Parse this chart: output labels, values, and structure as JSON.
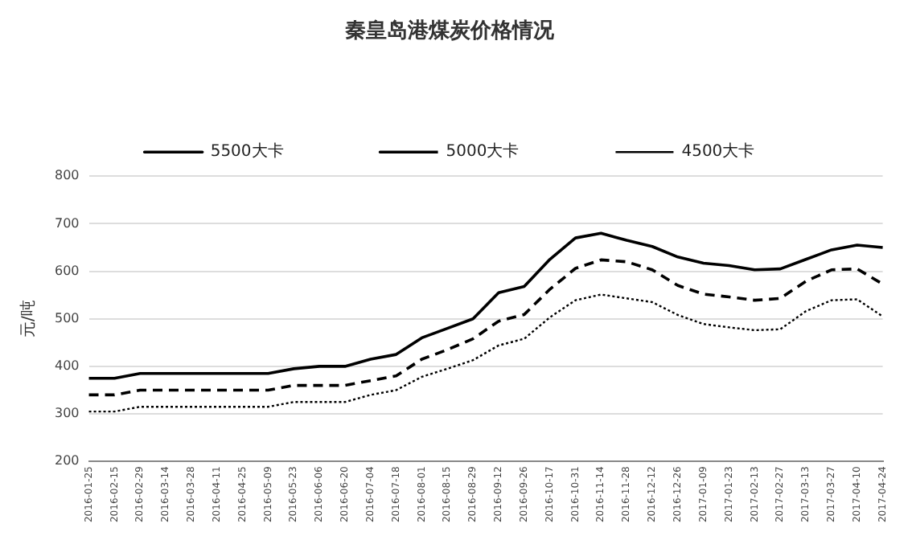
{
  "chart_data": {
    "type": "line",
    "title": "秦皇岛港煤炭价格情况",
    "ylabel": "元/吨",
    "categories": [
      "2016-01-25",
      "2016-02-15",
      "2016-02-29",
      "2016-03-14",
      "2016-03-28",
      "2016-04-11",
      "2016-04-25",
      "2016-05-09",
      "2016-05-23",
      "2016-06-06",
      "2016-06-20",
      "2016-07-04",
      "2016-07-18",
      "2016-08-01",
      "2016-08-15",
      "2016-08-29",
      "2016-09-12",
      "2016-09-26",
      "2016-10-17",
      "2016-10-31",
      "2016-11-14",
      "2016-11-28",
      "2016-12-12",
      "2016-12-26",
      "2017-01-09",
      "2017-01-23",
      "2017-02-13",
      "2017-02-27",
      "2017-03-13",
      "2017-03-27",
      "2017-04-10",
      "2017-04-24"
    ],
    "series": [
      {
        "name": "5500大卡",
        "color": "#000000",
        "line_style": "solid",
        "values": [
          375,
          375,
          385,
          385,
          385,
          385,
          385,
          385,
          395,
          400,
          400,
          415,
          425,
          460,
          480,
          500,
          555,
          568,
          625,
          670,
          680,
          665,
          652,
          630,
          617,
          612,
          603,
          605,
          625,
          645,
          655,
          650
        ]
      },
      {
        "name": "5000大卡",
        "color": "#000000",
        "line_style": "dashed",
        "values": [
          340,
          340,
          350,
          350,
          350,
          350,
          350,
          350,
          360,
          360,
          360,
          370,
          380,
          415,
          435,
          458,
          495,
          509,
          562,
          606,
          624,
          620,
          603,
          570,
          552,
          546,
          539,
          543,
          579,
          603,
          605,
          573
        ]
      },
      {
        "name": "4500大卡",
        "color": "#000000",
        "line_style": "dotted",
        "values": [
          305,
          305,
          315,
          315,
          315,
          315,
          315,
          315,
          325,
          325,
          325,
          340,
          350,
          378,
          395,
          413,
          444,
          458,
          503,
          539,
          551,
          543,
          535,
          508,
          489,
          482,
          476,
          478,
          516,
          539,
          541,
          505
        ]
      }
    ],
    "ylim": [
      200,
      800
    ],
    "yticks": [
      200,
      300,
      400,
      500,
      600,
      700,
      800
    ],
    "grid": "y",
    "legend": "top",
    "marker": "none"
  }
}
